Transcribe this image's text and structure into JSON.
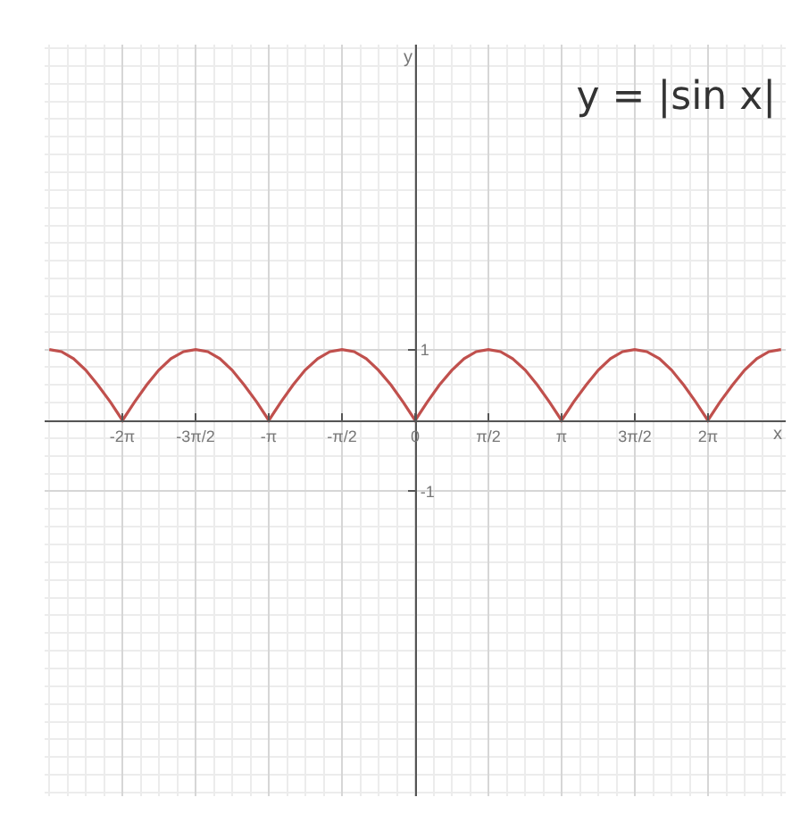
{
  "chart_data": {
    "type": "line",
    "title": "y = |sin x|",
    "xlabel": "x",
    "ylabel": "y",
    "x": [
      -7.85,
      -7.59,
      -7.33,
      -7.07,
      -6.81,
      -6.54,
      -6.28,
      -6.02,
      -5.76,
      -5.5,
      -5.24,
      -4.97,
      -4.71,
      -4.45,
      -4.19,
      -3.93,
      -3.67,
      -3.4,
      -3.14,
      -2.88,
      -2.62,
      -2.36,
      -2.09,
      -1.83,
      -1.57,
      -1.31,
      -1.05,
      -0.79,
      -0.52,
      -0.26,
      0,
      0.26,
      0.52,
      0.79,
      1.05,
      1.31,
      1.57,
      1.83,
      2.09,
      2.36,
      2.62,
      2.88,
      3.14,
      3.4,
      3.67,
      3.93,
      4.19,
      4.45,
      4.71,
      4.97,
      5.24,
      5.5,
      5.76,
      6.02,
      6.28,
      6.54,
      6.81,
      7.07,
      7.33,
      7.59,
      7.85
    ],
    "series": [
      {
        "color": "#c0504d",
        "values": [
          1,
          0.97,
          0.87,
          0.71,
          0.5,
          0.26,
          0,
          0.26,
          0.5,
          0.71,
          0.87,
          0.97,
          1,
          0.97,
          0.87,
          0.71,
          0.5,
          0.26,
          0,
          0.26,
          0.5,
          0.71,
          0.87,
          0.97,
          1,
          0.97,
          0.87,
          0.71,
          0.5,
          0.26,
          0,
          0.26,
          0.5,
          0.71,
          0.87,
          0.97,
          1,
          0.97,
          0.87,
          0.71,
          0.5,
          0.26,
          0,
          0.26,
          0.5,
          0.71,
          0.87,
          0.97,
          1,
          0.97,
          0.87,
          0.71,
          0.5,
          0.26,
          0,
          0.26,
          0.5,
          0.71,
          0.87,
          0.97,
          1
        ]
      }
    ],
    "xlim": [
      -7.95,
      7.95
    ],
    "ylim": [
      -5.3,
      5.3
    ],
    "xticks": [
      {
        "value": -6.283,
        "label": "-2π"
      },
      {
        "value": -4.712,
        "label": "-3π/2"
      },
      {
        "value": -3.142,
        "label": "-π"
      },
      {
        "value": -1.571,
        "label": "-π/2"
      },
      {
        "value": 0,
        "label": "0"
      },
      {
        "value": 1.571,
        "label": "π/2"
      },
      {
        "value": 3.142,
        "label": "π"
      },
      {
        "value": 4.712,
        "label": "3π/2"
      },
      {
        "value": 6.283,
        "label": "2π"
      }
    ],
    "yticks": [
      {
        "value": -1,
        "label": "-1"
      },
      {
        "value": 1,
        "label": "1"
      }
    ],
    "grid": true,
    "marker": "none",
    "line_style": "solid"
  }
}
